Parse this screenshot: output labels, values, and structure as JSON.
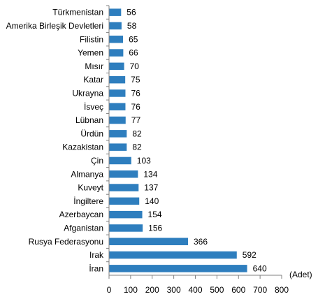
{
  "chart_data": {
    "type": "bar",
    "orientation": "horizontal",
    "categories": [
      "Türkmenistan",
      "Amerika Birleşik Devletleri",
      "Filistin",
      "Yemen",
      "Mısır",
      "Katar",
      "Ukrayna",
      "İsveç",
      "Lübnan",
      "Ürdün",
      "Kazakistan",
      "Çin",
      "Almanya",
      "Kuveyt",
      "İngiltere",
      "Azerbaycan",
      "Afganistan",
      "Rusya Federasyonu",
      "Irak",
      "İran"
    ],
    "values": [
      56,
      58,
      65,
      66,
      70,
      75,
      76,
      76,
      77,
      82,
      82,
      103,
      134,
      137,
      140,
      154,
      156,
      366,
      592,
      640
    ],
    "data_labels": [
      "56",
      "58",
      "65",
      "66",
      "70",
      "75",
      "76",
      "76",
      "77",
      "82",
      "82",
      "103",
      "134",
      "137",
      "140",
      "154",
      "156",
      "366",
      "592",
      "640"
    ],
    "title": "",
    "xlabel": "",
    "ylabel": "",
    "unit_label": "(Adet)",
    "xlim": [
      0,
      800
    ],
    "x_ticks": [
      0,
      100,
      200,
      300,
      400,
      500,
      600,
      700,
      800
    ],
    "x_tick_labels": [
      "0",
      "100",
      "200",
      "300",
      "400",
      "500",
      "600",
      "700",
      "800"
    ],
    "grid": false,
    "legend": "none",
    "bar_color": "#2E7EBE"
  }
}
